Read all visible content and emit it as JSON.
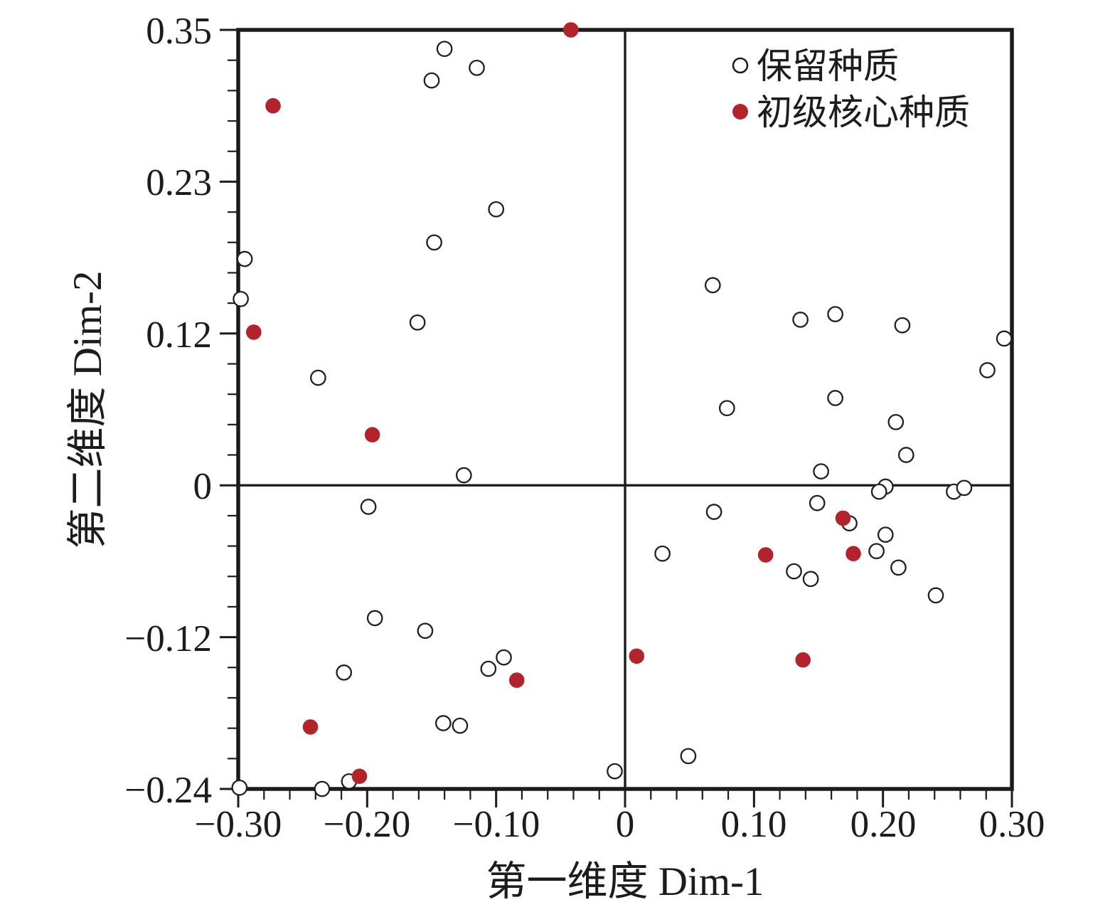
{
  "chart_data": {
    "type": "scatter",
    "title": "",
    "xlabel": "第一维度 Dim-1",
    "ylabel": "第二维度 Dim-2",
    "xlim": [
      -0.3,
      0.3
    ],
    "ylim": [
      -0.24,
      0.35
    ],
    "grid": false,
    "zero_lines": true,
    "legend_position": "top-right",
    "x_ticks": {
      "values": [
        -0.3,
        -0.2,
        -0.1,
        0,
        0.1,
        0.2,
        0.3
      ],
      "labels": [
        "−0.30",
        "−0.20",
        "−0.10",
        "0",
        "0.10",
        "0.20",
        "0.30"
      ],
      "minor_per_interval": 4
    },
    "y_ticks": {
      "values": [
        0.35,
        0.23,
        0.12,
        0,
        -0.12,
        -0.24
      ],
      "labels": [
        "0.35",
        "0.23",
        "0.12",
        "0",
        "−0.12",
        "−0.24"
      ],
      "minor_per_interval": 4
    },
    "colors": {
      "axis": "#1f1b1c",
      "open_marker_stroke": "#231f20",
      "core_marker_fill": "#b2232b"
    },
    "series": [
      {
        "name": "保留种质",
        "marker": "open-circle",
        "color": "#231f20",
        "points": [
          [
            -0.14,
            0.335
          ],
          [
            -0.115,
            0.32
          ],
          [
            -0.15,
            0.31
          ],
          [
            -0.1,
            0.21
          ],
          [
            -0.148,
            0.186
          ],
          [
            -0.295,
            0.174
          ],
          [
            -0.298,
            0.145
          ],
          [
            -0.161,
            0.128
          ],
          [
            -0.238,
            0.085
          ],
          [
            -0.125,
            0.008
          ],
          [
            -0.199,
            -0.017
          ],
          [
            -0.194,
            -0.105
          ],
          [
            -0.155,
            -0.115
          ],
          [
            -0.094,
            -0.136
          ],
          [
            -0.106,
            -0.145
          ],
          [
            -0.218,
            -0.148
          ],
          [
            -0.141,
            -0.188
          ],
          [
            -0.128,
            -0.19
          ],
          [
            -0.214,
            -0.234
          ],
          [
            -0.235,
            -0.24
          ],
          [
            -0.299,
            -0.239
          ],
          [
            -0.008,
            -0.226
          ],
          [
            0.049,
            -0.214
          ],
          [
            0.029,
            -0.054
          ],
          [
            0.069,
            -0.021
          ],
          [
            0.131,
            -0.068
          ],
          [
            0.144,
            -0.074
          ],
          [
            0.149,
            -0.014
          ],
          [
            0.174,
            -0.03
          ],
          [
            0.202,
            -0.039
          ],
          [
            0.195,
            -0.052
          ],
          [
            0.212,
            -0.065
          ],
          [
            0.241,
            -0.087
          ],
          [
            0.068,
            0.155
          ],
          [
            0.136,
            0.13
          ],
          [
            0.163,
            0.134
          ],
          [
            0.215,
            0.126
          ],
          [
            0.294,
            0.116
          ],
          [
            0.281,
            0.091
          ],
          [
            0.079,
            0.061
          ],
          [
            0.163,
            0.069
          ],
          [
            0.21,
            0.05
          ],
          [
            0.218,
            0.024
          ],
          [
            0.152,
            0.011
          ],
          [
            0.202,
            -0.001
          ],
          [
            0.197,
            -0.005
          ],
          [
            0.255,
            -0.005
          ],
          [
            0.263,
            -0.002
          ]
        ]
      },
      {
        "name": "初级核心种质",
        "marker": "filled-circle",
        "color": "#b2232b",
        "points": [
          [
            -0.042,
            0.35
          ],
          [
            -0.273,
            0.29
          ],
          [
            -0.288,
            0.121
          ],
          [
            -0.196,
            0.04
          ],
          [
            -0.084,
            -0.154
          ],
          [
            -0.244,
            -0.191
          ],
          [
            -0.206,
            -0.23
          ],
          [
            0.009,
            -0.135
          ],
          [
            0.109,
            -0.055
          ],
          [
            0.169,
            -0.026
          ],
          [
            0.177,
            -0.054
          ],
          [
            0.138,
            -0.138
          ]
        ]
      }
    ]
  }
}
